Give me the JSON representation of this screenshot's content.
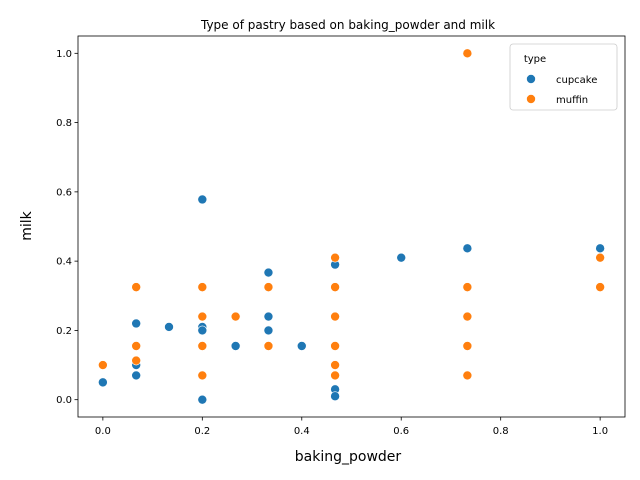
{
  "chart_data": {
    "type": "scatter",
    "title": "Type of pastry based on baking_powder and milk",
    "xlabel": "baking_powder",
    "ylabel": "milk",
    "xlim": [
      -0.05,
      1.05
    ],
    "ylim": [
      -0.05,
      1.05
    ],
    "xticks": [
      "0.0",
      "0.2",
      "0.4",
      "0.6",
      "0.8",
      "1.0"
    ],
    "yticks": [
      "0.0",
      "0.2",
      "0.4",
      "0.6",
      "0.8",
      "1.0"
    ],
    "grid": false,
    "legend": {
      "title": "type",
      "placement": "top-right"
    },
    "series": [
      {
        "name": "cupcake",
        "color": "#1f77b4",
        "points": [
          [
            0.0,
            0.05
          ],
          [
            0.067,
            0.07
          ],
          [
            0.067,
            0.1
          ],
          [
            0.067,
            0.22
          ],
          [
            0.133,
            0.21
          ],
          [
            0.2,
            0.578
          ],
          [
            0.2,
            0.21
          ],
          [
            0.2,
            0.2
          ],
          [
            0.2,
            0.0
          ],
          [
            0.267,
            0.155
          ],
          [
            0.333,
            0.367
          ],
          [
            0.333,
            0.24
          ],
          [
            0.333,
            0.2
          ],
          [
            0.4,
            0.155
          ],
          [
            0.467,
            0.39
          ],
          [
            0.467,
            0.03
          ],
          [
            0.467,
            0.01
          ],
          [
            0.6,
            0.41
          ],
          [
            0.733,
            0.437
          ],
          [
            1.0,
            0.437
          ]
        ]
      },
      {
        "name": "muffin",
        "color": "#ff7f0e",
        "points": [
          [
            0.0,
            0.1
          ],
          [
            0.067,
            0.325
          ],
          [
            0.067,
            0.155
          ],
          [
            0.067,
            0.113
          ],
          [
            0.2,
            0.325
          ],
          [
            0.2,
            0.24
          ],
          [
            0.2,
            0.155
          ],
          [
            0.2,
            0.07
          ],
          [
            0.267,
            0.24
          ],
          [
            0.333,
            0.325
          ],
          [
            0.333,
            0.155
          ],
          [
            0.467,
            0.41
          ],
          [
            0.467,
            0.325
          ],
          [
            0.467,
            0.24
          ],
          [
            0.467,
            0.155
          ],
          [
            0.467,
            0.1
          ],
          [
            0.467,
            0.07
          ],
          [
            0.733,
            1.0
          ],
          [
            0.733,
            0.325
          ],
          [
            0.733,
            0.24
          ],
          [
            0.733,
            0.155
          ],
          [
            0.733,
            0.07
          ],
          [
            1.0,
            0.41
          ],
          [
            1.0,
            0.325
          ]
        ]
      }
    ]
  }
}
